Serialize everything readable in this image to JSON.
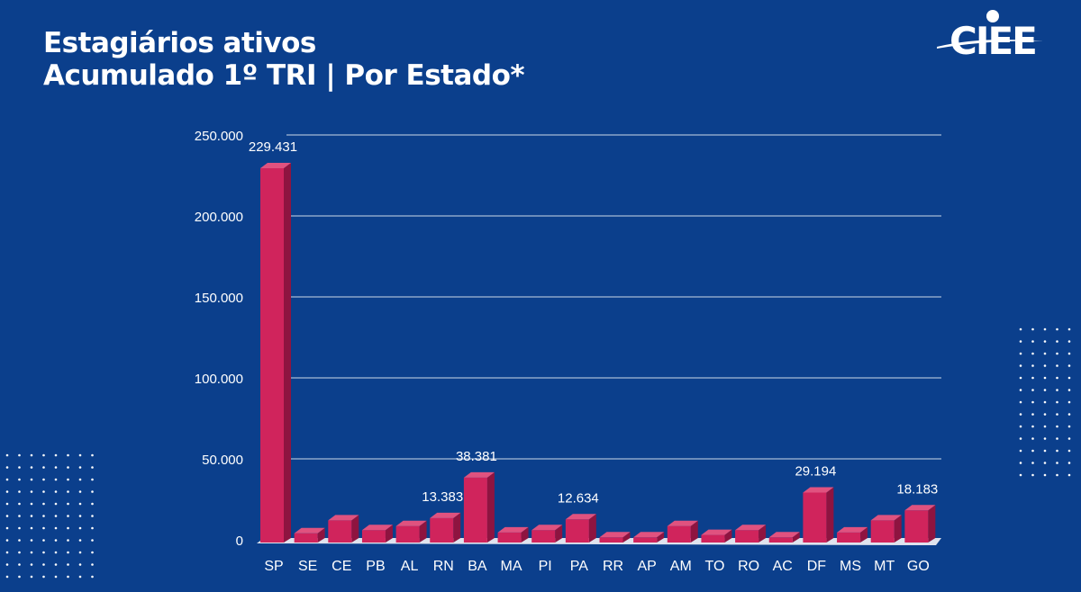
{
  "header": {
    "title_line1": "Estagiários ativos",
    "title_line2": "Acumulado 1º TRI | Por Estado*",
    "logo_text": "CIEE"
  },
  "colors": {
    "background": "#0b3f8c",
    "bar": "#d0245c",
    "bar_top": "#e0527f",
    "bar_side": "#8e1440",
    "grid": "#ffffff",
    "text": "#ffffff"
  },
  "chart_data": {
    "type": "bar",
    "title": "Estagiários ativos Acumulado 1º TRI | Por Estado*",
    "categories": [
      "SP",
      "SE",
      "CE",
      "PB",
      "AL",
      "RN",
      "BA",
      "MA",
      "PI",
      "PA",
      "RR",
      "AP",
      "AM",
      "TO",
      "RO",
      "AC",
      "DF",
      "MS",
      "MT",
      "GO"
    ],
    "values": [
      229431,
      4000,
      12000,
      6000,
      8500,
      13383,
      38381,
      4500,
      6000,
      12634,
      1500,
      1500,
      8500,
      3000,
      6000,
      1500,
      29194,
      4500,
      12000,
      18183
    ],
    "data_labels": {
      "SP": "229.431",
      "RN": "13.383",
      "BA": "38.381",
      "PA": "12.634",
      "DF": "29.194",
      "GO": "18.183"
    },
    "yticks": [
      0,
      50000,
      100000,
      150000,
      200000,
      250000
    ],
    "ytick_labels": [
      "0",
      "50.000",
      "100.000",
      "150.000",
      "200.000",
      "250.000"
    ],
    "ylim": [
      0,
      250000
    ],
    "grid": true,
    "style": "3d"
  }
}
